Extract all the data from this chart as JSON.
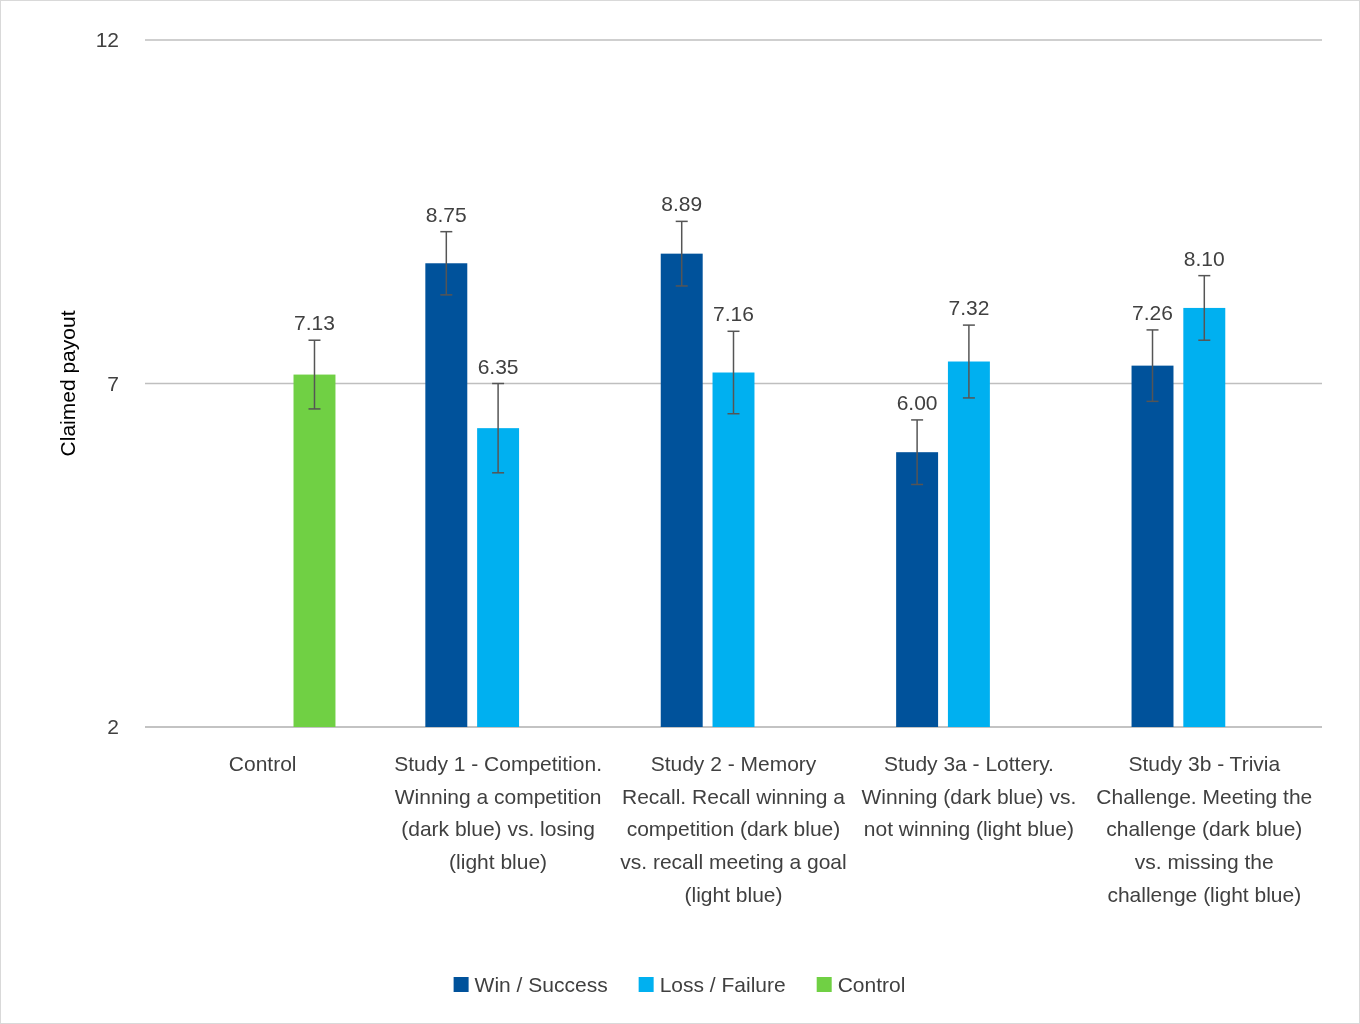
{
  "chart_data": {
    "type": "bar",
    "ylabel": "Claimed payout",
    "categories": [
      "Control",
      "Study 1 - Competition. Winning a competition (dark blue) vs. losing (light blue)",
      "Study 2 - Memory Recall. Recall winning a competition (dark blue) vs. recall meeting a goal (light blue)",
      "Study 3a - Lottery. Winning (dark blue) vs. not winning (light blue)",
      "Study 3b - Trivia Challenge. Meeting the challenge (dark blue) vs. missing the challenge (light blue)"
    ],
    "series": [
      {
        "name": "Win / Success",
        "color": "#00529b",
        "values": [
          null,
          8.75,
          8.89,
          6.0,
          7.26
        ],
        "errors": [
          null,
          0.46,
          0.47,
          0.47,
          0.52
        ],
        "value_labels": [
          null,
          "8.75",
          "8.89",
          "6.00",
          "7.26"
        ]
      },
      {
        "name": "Loss / Failure",
        "color": "#00b0f0",
        "values": [
          null,
          6.35,
          7.16,
          7.32,
          8.1
        ],
        "errors": [
          null,
          0.65,
          0.6,
          0.53,
          0.47
        ],
        "value_labels": [
          null,
          "6.35",
          "7.16",
          "7.32",
          "8.10"
        ]
      },
      {
        "name": "Control",
        "color": "#70d044",
        "values": [
          7.13,
          null,
          null,
          null,
          null
        ],
        "errors": [
          0.5,
          null,
          null,
          null,
          null
        ],
        "value_labels": [
          "7.13",
          null,
          null,
          null,
          null
        ]
      }
    ],
    "ylim": [
      2,
      12
    ],
    "yticks": [
      2,
      7,
      12
    ],
    "grid": "y",
    "legend": "bottom"
  }
}
